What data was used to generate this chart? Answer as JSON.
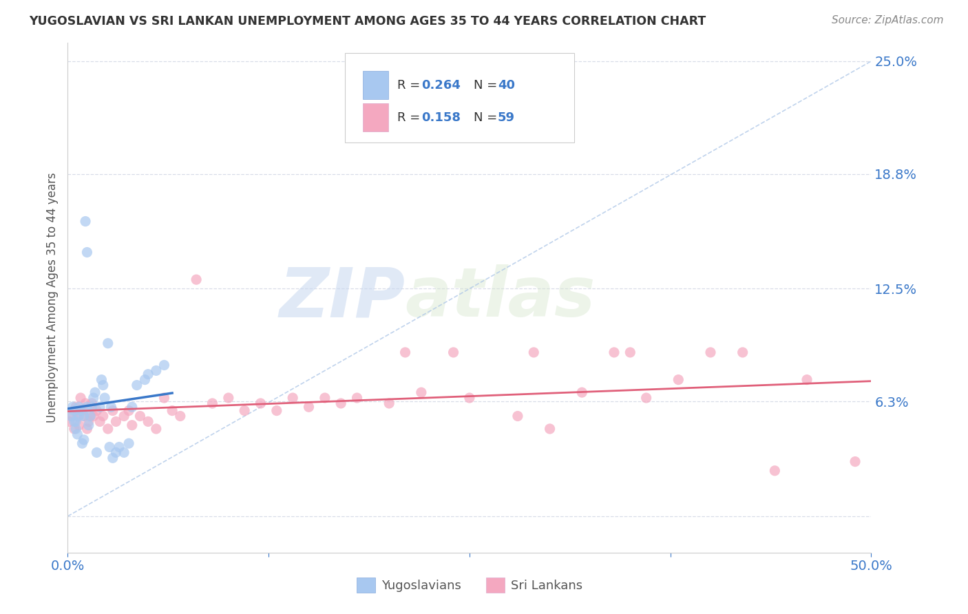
{
  "title": "YUGOSLAVIAN VS SRI LANKAN UNEMPLOYMENT AMONG AGES 35 TO 44 YEARS CORRELATION CHART",
  "source": "Source: ZipAtlas.com",
  "ylabel": "Unemployment Among Ages 35 to 44 years",
  "xlim": [
    0.0,
    0.5
  ],
  "ylim": [
    -0.02,
    0.26
  ],
  "ytick_vals": [
    0.0,
    0.063,
    0.125,
    0.188,
    0.25
  ],
  "ytick_labels": [
    "",
    "6.3%",
    "12.5%",
    "18.8%",
    "25.0%"
  ],
  "xtick_vals": [
    0.0,
    0.125,
    0.25,
    0.375,
    0.5
  ],
  "xtick_labels": [
    "0.0%",
    "",
    "",
    "",
    "50.0%"
  ],
  "color_yugo": "#a8c8f0",
  "color_sri": "#f4a8c0",
  "color_line_yugo": "#3a78c9",
  "color_line_sri": "#e0607a",
  "color_ref_line": "#b0c8e8",
  "color_grid": "#d8dde8",
  "background_color": "#ffffff",
  "watermark_zip": "ZIP",
  "watermark_atlas": "atlas",
  "legend_r1": "0.264",
  "legend_n1": "40",
  "legend_r2": "0.158",
  "legend_n2": "59",
  "yugo_x": [
    0.002,
    0.003,
    0.004,
    0.004,
    0.005,
    0.005,
    0.006,
    0.007,
    0.007,
    0.008,
    0.009,
    0.01,
    0.01,
    0.011,
    0.012,
    0.012,
    0.013,
    0.014,
    0.015,
    0.016,
    0.017,
    0.018,
    0.02,
    0.021,
    0.022,
    0.023,
    0.025,
    0.026,
    0.027,
    0.028,
    0.03,
    0.032,
    0.035,
    0.038,
    0.04,
    0.043,
    0.048,
    0.05,
    0.055,
    0.06
  ],
  "yugo_y": [
    0.055,
    0.06,
    0.058,
    0.052,
    0.048,
    0.052,
    0.045,
    0.06,
    0.055,
    0.058,
    0.04,
    0.055,
    0.042,
    0.162,
    0.145,
    0.06,
    0.05,
    0.055,
    0.06,
    0.065,
    0.068,
    0.035,
    0.06,
    0.075,
    0.072,
    0.065,
    0.095,
    0.038,
    0.06,
    0.032,
    0.035,
    0.038,
    0.035,
    0.04,
    0.06,
    0.072,
    0.075,
    0.078,
    0.08,
    0.083
  ],
  "sri_x": [
    0.001,
    0.003,
    0.004,
    0.005,
    0.006,
    0.007,
    0.008,
    0.009,
    0.01,
    0.011,
    0.012,
    0.013,
    0.014,
    0.015,
    0.016,
    0.018,
    0.02,
    0.022,
    0.025,
    0.028,
    0.03,
    0.035,
    0.038,
    0.04,
    0.045,
    0.05,
    0.055,
    0.06,
    0.065,
    0.07,
    0.08,
    0.09,
    0.1,
    0.11,
    0.12,
    0.13,
    0.14,
    0.15,
    0.16,
    0.17,
    0.18,
    0.2,
    0.21,
    0.22,
    0.24,
    0.25,
    0.28,
    0.29,
    0.3,
    0.32,
    0.34,
    0.35,
    0.36,
    0.38,
    0.4,
    0.42,
    0.44,
    0.46,
    0.49
  ],
  "sri_y": [
    0.052,
    0.055,
    0.048,
    0.06,
    0.055,
    0.05,
    0.065,
    0.058,
    0.055,
    0.062,
    0.048,
    0.052,
    0.055,
    0.062,
    0.055,
    0.058,
    0.052,
    0.055,
    0.048,
    0.058,
    0.052,
    0.055,
    0.058,
    0.05,
    0.055,
    0.052,
    0.048,
    0.065,
    0.058,
    0.055,
    0.13,
    0.062,
    0.065,
    0.058,
    0.062,
    0.058,
    0.065,
    0.06,
    0.065,
    0.062,
    0.065,
    0.062,
    0.09,
    0.068,
    0.09,
    0.065,
    0.055,
    0.09,
    0.048,
    0.068,
    0.09,
    0.09,
    0.065,
    0.075,
    0.09,
    0.09,
    0.025,
    0.075,
    0.03
  ]
}
